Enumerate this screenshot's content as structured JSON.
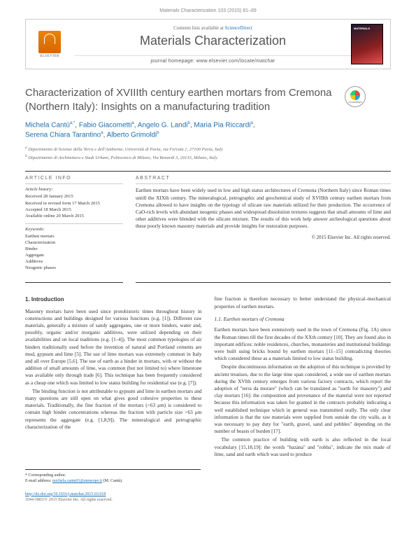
{
  "header": {
    "citation": "Materials Characterization 103 (2015) 81–89"
  },
  "banner": {
    "contents_prefix": "Contents lists available at ",
    "contents_link": "ScienceDirect",
    "journal_name": "Materials Characterization",
    "homepage_label": "journal homepage: www.elsevier.com/locate/matchar",
    "publisher_name": "ELSEVIER"
  },
  "crossmark": {
    "label": "CrossMark"
  },
  "title": "Characterization of XVIIIth century earthen mortars from Cremona (Northern Italy): Insights on a manufacturing tradition",
  "authors_html": [
    {
      "name": "Michela Cantù",
      "sup": "a,*"
    },
    {
      "name": "Fabio Giacometti",
      "sup": "a"
    },
    {
      "name": "Angelo G. Landi",
      "sup": "b"
    },
    {
      "name": "Maria Pia Riccardi",
      "sup": "a"
    },
    {
      "name": "Serena Chiara Tarantino",
      "sup": "a"
    },
    {
      "name": "Alberto Grimoldi",
      "sup": "b"
    }
  ],
  "affiliations": {
    "a": "Dipartimento di Scienze della Terra e dell'Ambiente, Università di Pavia, via Ferrata 1, 27100 Pavia, Italy",
    "b": "Dipartimento di Architettura e Studi Urbani, Politecnico di Milano, Via Bonardi 3, 20133, Milano, Italy"
  },
  "article_info": {
    "heading": "ARTICLE INFO",
    "history_label": "Article history:",
    "history": [
      "Received 28 January 2015",
      "Received in revised form 17 March 2015",
      "Accepted 18 March 2015",
      "Available online 20 March 2015"
    ],
    "keywords_label": "Keywords:",
    "keywords": [
      "Earthen mortars",
      "Characterization",
      "Binder",
      "Aggregate",
      "Additives",
      "Neogenic phases"
    ]
  },
  "abstract": {
    "heading": "ABSTRACT",
    "text": "Earthen mortars have been widely used in low and high status architectures of Cremona (Northern Italy) since Roman times untill the XIXth century. The mineralogical, petrographic and geochemical study of XVIIIth century earthen mortars from Cremona allowed to have insights on the typology of silicate raw materials utilized for their production. The occurrence of CaO-rich levels with abundant neogenic phases and widespread dissolution textures suggests that small amounts of lime and other additives were blended with the silicate mixture. The results of this work help answer archeological questions about these poorly known masonry materials and provide insights for restoration purposes.",
    "copyright": "© 2015 Elsevier Inc. All rights reserved."
  },
  "body": {
    "section1_heading": "1. Introduction",
    "col1_p1": "Masonry mortars have been used since protohistoric times throughout history in constructions and buildings designed for various functions (e.g. [1]). Different raw materials, generally a mixture of sandy aggregates, one or more binders, water and, possibly, organic and/or inorganic additives, were utilized depending on their availabilities and on local traditions (e.g. [1–4]). The most common typologies of air binders traditionally used before the invention of natural and Portland cements are mud, gypsum and lime [5]. The use of lime mortars was extremely common in Italy and all over Europe [5,6]. The use of earth as a binder in mortars, with or without the addition of small amounts of lime, was common (but not limited to) where limestone was available only through trade [6]. This technique has been frequently considered as a cheap one which was limited to low status building for residential use (e.g. [7]).",
    "col1_p2": "The binding function is not attributable to gypsum and lime in earthen mortars and many questions are still open on what gives good cohesive properties to these materials. Traditionally, the fine fraction of the mortars (<63 μm) is considered to contain high binder concentrations whereas the fraction with particle size >63 μm represents the aggregate (e.g. [1,8,9]). The mineralogical and petrographic characterization of the",
    "col2_p1": "fine fraction is therefore necessary to better understand the physical–mechanical properties of earthen mortars.",
    "subsection_heading": "1.1. Earthen mortars of Cremona",
    "col2_p2": "Earthen mortars have been extensively used in the town of Cremona (Fig. 1A) since the Roman times till the first decades of the XXth century [10]. They are found also in important edifices: noble residences, churches, monasteries and institutional buildings were built using bricks bound by earthen mortars [11–15] contradicting theories which considered these as a materials limited to low status building.",
    "col2_p3": "Despite discontinuous information on the adoption of this technique is provided by ancient treatises, due to the large time span considered, a wide use of earthen mortars during the XVIth century emerges from various factory contracts, which report the adoption of \"terra da murare\" (which can be translated as \"earth for masonry\") and clay mortars [16]: the composition and provenance of the material were not reported because this information was taken for granted in the contracts probably indicating a well established technique which in general was transmitted orally. The only clear information is that the raw materials were supplied from outside the city walls, as it was necessary to pay duty for \"earth, gravel, sand and pebbles\" depending on the number of beasts of burden [17].",
    "col2_p4": "The common practice of building with earth is also reflected in the local vocabulary [15,18,19]: the words \"bazàna\" and \"robba\", indicate the mix made of lime, sand and earth which was used to produce"
  },
  "footer": {
    "corresponding": "* Corresponding author.",
    "email_label": "E-mail address: ",
    "email": "michela.cantu01@ateneopv.it",
    "email_who": " (M. Cantù).",
    "doi_url": "http://dx.doi.org/10.1016/j.matchar.2015.03.018",
    "issn_line": "1044-5803/© 2015 Elsevier Inc. All rights reserved."
  },
  "colors": {
    "link": "#1a6fb3",
    "text": "#333333",
    "muted": "#666666",
    "border": "#333333"
  }
}
